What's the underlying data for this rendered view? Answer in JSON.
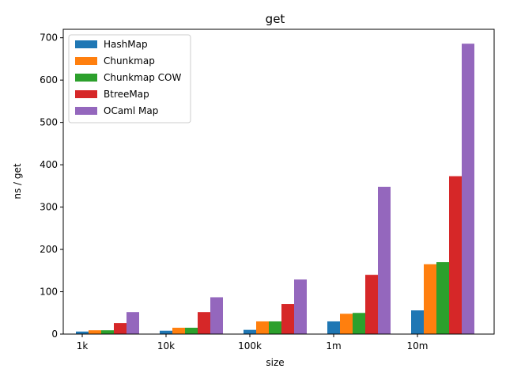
{
  "chart_data": {
    "type": "bar",
    "title": "get",
    "xlabel": "size",
    "ylabel": "ns / get",
    "categories": [
      "1k",
      "10k",
      "100k",
      "1m",
      "10m"
    ],
    "ylim": [
      0,
      720
    ],
    "yticks": [
      0,
      100,
      200,
      300,
      400,
      500,
      600,
      700
    ],
    "grid": false,
    "legend_position": "top-left",
    "series": [
      {
        "name": "HashMap",
        "color": "#1f77b4",
        "values": [
          6,
          8,
          10,
          30,
          56
        ]
      },
      {
        "name": "Chunkmap",
        "color": "#ff7f0e",
        "values": [
          9,
          15,
          30,
          48,
          165
        ]
      },
      {
        "name": "Chunkmap COW",
        "color": "#2ca02c",
        "values": [
          9,
          15,
          30,
          50,
          170
        ]
      },
      {
        "name": "BtreeMap",
        "color": "#d62728",
        "values": [
          26,
          52,
          71,
          140,
          373
        ]
      },
      {
        "name": "OCaml Map",
        "color": "#9467bd",
        "values": [
          52,
          87,
          129,
          348,
          686
        ]
      }
    ]
  }
}
